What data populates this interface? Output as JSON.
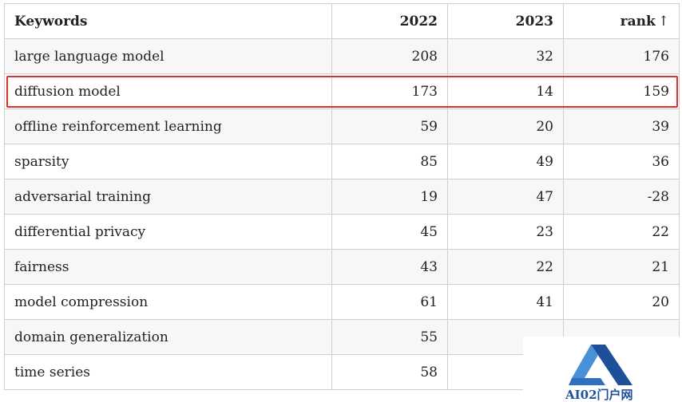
{
  "table": {
    "headers": {
      "keywords": "Keywords",
      "y2022": "2022",
      "y2023": "2023",
      "rank": "rank",
      "rank_arrow": "↑"
    },
    "rows": [
      {
        "keyword": "large language model",
        "y2022": "208",
        "y2023": "32",
        "rank": "176"
      },
      {
        "keyword": "diffusion model",
        "y2022": "173",
        "y2023": "14",
        "rank": "159"
      },
      {
        "keyword": "offline reinforcement learning",
        "y2022": "59",
        "y2023": "20",
        "rank": "39"
      },
      {
        "keyword": "sparsity",
        "y2022": "85",
        "y2023": "49",
        "rank": "36"
      },
      {
        "keyword": "adversarial training",
        "y2022": "19",
        "y2023": "47",
        "rank": "-28"
      },
      {
        "keyword": "differential privacy",
        "y2022": "45",
        "y2023": "23",
        "rank": "22"
      },
      {
        "keyword": "fairness",
        "y2022": "43",
        "y2023": "22",
        "rank": "21"
      },
      {
        "keyword": "model compression",
        "y2022": "61",
        "y2023": "41",
        "rank": "20"
      },
      {
        "keyword": "domain generalization",
        "y2022": "55",
        "y2023": "",
        "rank": ""
      },
      {
        "keyword": "time series",
        "y2022": "58",
        "y2023": "",
        "rank": ""
      }
    ],
    "highlighted_row": "diffusion model"
  },
  "watermark": {
    "text": "AI02门户网",
    "colors": {
      "primary": "#1f4f99",
      "light": "#4a90d9"
    }
  },
  "colors": {
    "highlight_border": "#e0302a",
    "grid": "#cfcfcf",
    "stripe": "#f7f7f7"
  }
}
